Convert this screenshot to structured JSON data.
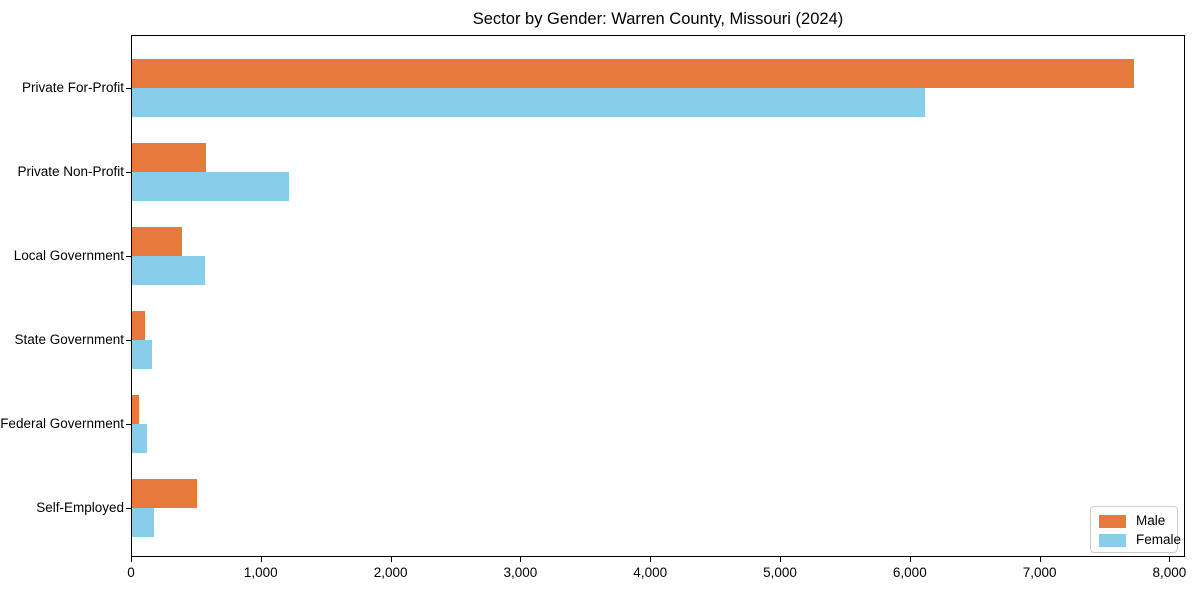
{
  "chart_data": {
    "type": "bar",
    "orientation": "horizontal",
    "title": "Sector by Gender: Warren County, Missouri (2024)",
    "xlabel": "",
    "ylabel": "",
    "categories": [
      "Private For-Profit",
      "Private Non-Profit",
      "Local Government",
      "State Government",
      "Federal Government",
      "Self-Employed"
    ],
    "series": [
      {
        "name": "Male",
        "color": "#E8793D",
        "values": [
          7730,
          580,
          395,
          110,
          60,
          510
        ]
      },
      {
        "name": "Female",
        "color": "#87CEEB",
        "values": [
          6120,
          1220,
          570,
          160,
          120,
          180
        ]
      }
    ],
    "xlim": [
      0,
      8120
    ],
    "x_ticks": [
      0,
      1000,
      2000,
      3000,
      4000,
      5000,
      6000,
      7000,
      8000
    ],
    "x_tick_labels": [
      "0",
      "1,000",
      "2,000",
      "3,000",
      "4,000",
      "5,000",
      "6,000",
      "7,000",
      "8,000"
    ],
    "grid": false,
    "legend_position": "lower right"
  }
}
